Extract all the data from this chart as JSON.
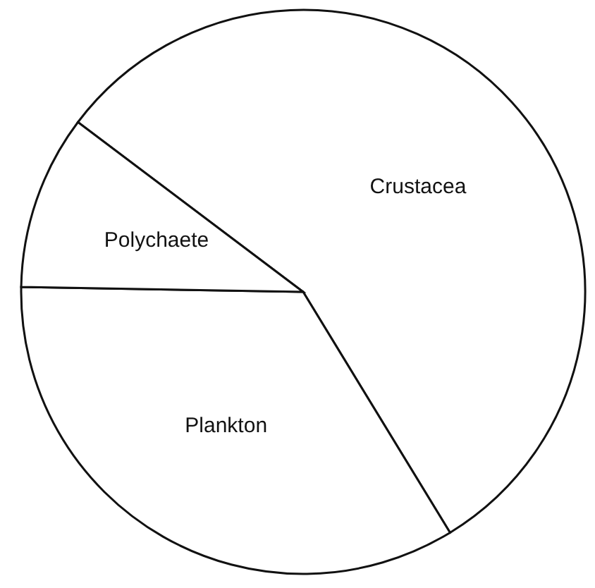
{
  "chart_data": {
    "type": "pie",
    "categories": [
      "Crustacea",
      "Plankton",
      "Polychaete"
    ],
    "values": [
      56,
      34,
      10
    ],
    "colors": [
      "#ffffff",
      "#ffffff",
      "#ffffff"
    ]
  }
}
